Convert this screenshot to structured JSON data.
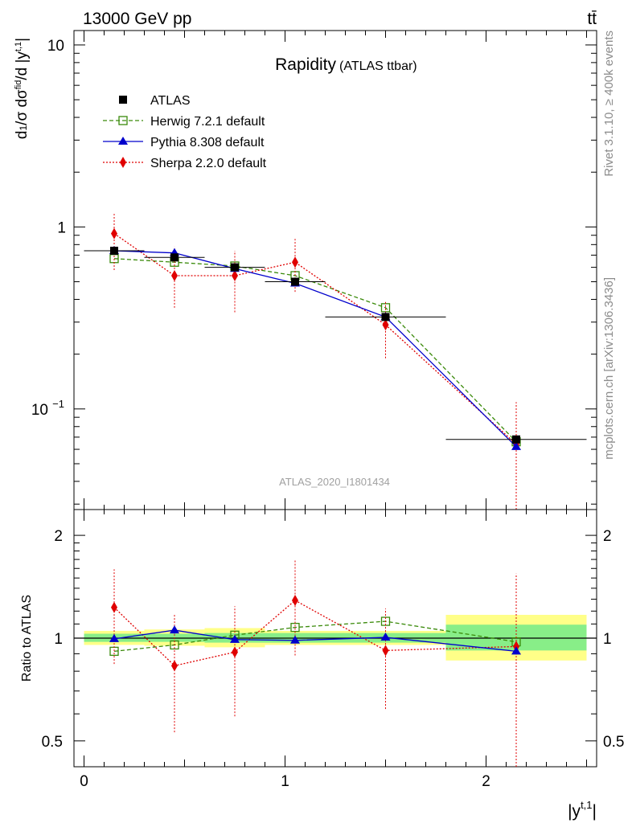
{
  "header": {
    "left": "13000 GeV pp",
    "right": "tt̄"
  },
  "side_labels": {
    "top": "Rivet 3.1.10, ≥ 400k events",
    "bottom": "mcplots.cern.ch [arXiv:1306.3436]"
  },
  "chart_data": [
    {
      "type": "scatter",
      "title": "Rapidity",
      "subtitle": "(ATLAS ttbar)",
      "ylabel": "1/σ dσ^{fid}/d |y^{t,1}|",
      "yscale": "log",
      "xlim": [
        -0.05,
        2.55
      ],
      "ylim": [
        0.028,
        12
      ],
      "yticks_major": [
        "10^{-1}",
        "1",
        "10"
      ],
      "watermark": "ATLAS_2020_I1801434",
      "x": [
        0.15,
        0.45,
        0.75,
        1.05,
        1.5,
        2.15
      ],
      "xerr": [
        [
          0.0,
          0.3
        ],
        [
          0.3,
          0.6
        ],
        [
          0.6,
          0.9
        ],
        [
          0.9,
          1.2
        ],
        [
          1.2,
          1.8
        ],
        [
          1.8,
          2.5
        ]
      ],
      "legend_position": "top-left",
      "series": [
        {
          "name": "ATLAS",
          "color": "#000000",
          "marker": "square-filled",
          "line": "none",
          "values": [
            0.74,
            0.68,
            0.6,
            0.5,
            0.32,
            0.068
          ]
        },
        {
          "name": "Herwig 7.2.1 default",
          "color": "#3a8a0a",
          "marker": "square-open",
          "line": "dashed",
          "values": [
            0.67,
            0.64,
            0.61,
            0.54,
            0.36,
            0.066
          ]
        },
        {
          "name": "Pythia 8.308 default",
          "color": "#0000cc",
          "marker": "triangle",
          "line": "solid",
          "values": [
            0.74,
            0.72,
            0.59,
            0.49,
            0.32,
            0.062
          ]
        },
        {
          "name": "Sherpa 2.2.0 default",
          "color": "#e00000",
          "marker": "diamond",
          "line": "dotted",
          "values": [
            0.92,
            0.54,
            0.54,
            0.64,
            0.29,
            0.064
          ],
          "err_low": [
            0.34,
            0.18,
            0.2,
            0.2,
            0.1,
            0.04
          ],
          "err_high": [
            0.26,
            0.24,
            0.2,
            0.22,
            0.1,
            0.045
          ]
        }
      ]
    },
    {
      "type": "scatter",
      "ylabel": "Ratio to ATLAS",
      "xlabel": "|y^{t,1}|",
      "yscale": "log",
      "ylim": [
        0.42,
        2.38
      ],
      "yticks_major": [
        "0.5",
        "1",
        "2"
      ],
      "xticks_major": [
        "0",
        "1",
        "2"
      ],
      "x": [
        0.15,
        0.45,
        0.75,
        1.05,
        1.5,
        2.15
      ],
      "band_green": [
        [
          0.975,
          1.03
        ],
        [
          0.975,
          1.03
        ],
        [
          0.97,
          1.035
        ],
        [
          0.97,
          1.035
        ],
        [
          0.97,
          1.035
        ],
        [
          0.92,
          1.095
        ]
      ],
      "band_yellow": [
        [
          0.955,
          1.05
        ],
        [
          0.95,
          1.06
        ],
        [
          0.94,
          1.07
        ],
        [
          0.955,
          1.05
        ],
        [
          0.955,
          1.05
        ],
        [
          0.86,
          1.17
        ]
      ],
      "series": [
        {
          "name": "Herwig 7.2.1 default",
          "color": "#3a8a0a",
          "marker": "square-open",
          "line": "dashed",
          "values": [
            0.915,
            0.955,
            1.02,
            1.075,
            1.12,
            0.975
          ]
        },
        {
          "name": "Pythia 8.308 default",
          "color": "#0000cc",
          "marker": "triangle",
          "line": "solid",
          "values": [
            0.995,
            1.055,
            0.99,
            0.985,
            1.005,
            0.915
          ],
          "err": [
            0.02,
            0.025,
            0.02,
            0.02,
            0.02,
            0.02
          ]
        },
        {
          "name": "Sherpa 2.2.0 default",
          "color": "#e00000",
          "marker": "diamond",
          "line": "dotted",
          "values": [
            1.23,
            0.83,
            0.91,
            1.29,
            0.92,
            0.945
          ],
          "err_low": [
            0.39,
            0.3,
            0.32,
            0.4,
            0.3,
            0.6
          ],
          "err_high": [
            0.36,
            0.34,
            0.33,
            0.4,
            0.3,
            0.6
          ]
        }
      ]
    }
  ]
}
